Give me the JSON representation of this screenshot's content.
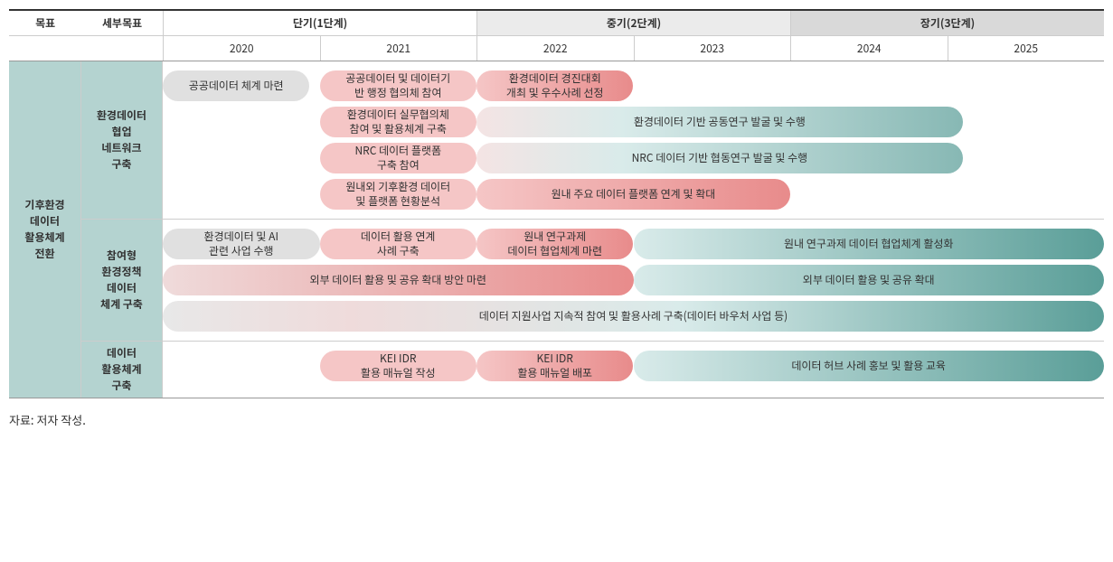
{
  "header": {
    "goal_label": "목표",
    "sub_label": "세부목표",
    "phases": [
      {
        "label": "단기(1단계)",
        "years": [
          "2020",
          "2021"
        ],
        "bg": "#ffffff"
      },
      {
        "label": "중기(2단계)",
        "years": [
          "2022",
          "2023"
        ],
        "bg": "#ebebeb"
      },
      {
        "label": "장기(3단계)",
        "years": [
          "2024",
          "2025"
        ],
        "bg": "#d9d9d9"
      }
    ]
  },
  "goal": {
    "label": "기후환경\n데이터\n활용체계\n전환",
    "bg": "#b4d3d0",
    "subs": [
      {
        "label": "환경데이터\n협업\n네트워크\n구축",
        "bg": "#b4d3d0",
        "tracks": [
          [
            {
              "label": "공공데이터 체계 마련",
              "start": 0,
              "end": 15.6,
              "bg": "#e0e0e0",
              "grad": null,
              "color": "#333"
            },
            {
              "label": "공공데이터 및 데이터기\n반 행정 협의체 참여",
              "start": 16.67,
              "end": 33.33,
              "bg": "#f5c6c6",
              "grad": null,
              "color": "#333"
            },
            {
              "label": "환경데이터 경진대회\n개최 및 우수사례 선정",
              "start": 33.33,
              "end": 50,
              "bg": "linear-gradient(90deg,#f5c6c6 0%,#e88b8b 100%)",
              "grad": true,
              "color": "#333"
            }
          ],
          [
            {
              "label": "환경데이터 실무협의체\n참여 및 활용체계 구축",
              "start": 16.67,
              "end": 33.33,
              "bg": "#f5c6c6",
              "grad": null,
              "color": "#333"
            },
            {
              "label": "환경데이터 기반 공동연구 발굴 및 수행",
              "start": 33.33,
              "end": 85,
              "bg": "linear-gradient(90deg,#f4e4e4 0%,#d9ebea 30%,#87b8b4 100%)",
              "grad": true,
              "color": "#333"
            }
          ],
          [
            {
              "label": "NRC 데이터 플랫폼\n구축 참여",
              "start": 16.67,
              "end": 33.33,
              "bg": "#f5c6c6",
              "grad": null,
              "color": "#333"
            },
            {
              "label": "NRC 데이터 기반 협동연구 발굴 및 수행",
              "start": 33.33,
              "end": 85,
              "bg": "linear-gradient(90deg,#f4e4e4 0%,#d9ebea 30%,#87b8b4 100%)",
              "grad": true,
              "color": "#333"
            }
          ],
          [
            {
              "label": "원내외 기후환경 데이터\n및 플랫폼 현황분석",
              "start": 16.67,
              "end": 33.33,
              "bg": "#f5c6c6",
              "grad": null,
              "color": "#333"
            },
            {
              "label": "원내 주요 데이터 플랫폼 연계 및 확대",
              "start": 33.33,
              "end": 66.67,
              "bg": "linear-gradient(90deg,#f5c6c6 0%,#e88b8b 100%)",
              "grad": true,
              "color": "#333"
            }
          ]
        ]
      },
      {
        "label": "참여형\n환경정책\n데이터\n체계 구축",
        "bg": "#b4d3d0",
        "tracks": [
          [
            {
              "label": "환경데이터 및 AI\n관련 사업 수행",
              "start": 0,
              "end": 16.67,
              "bg": "#e0e0e0",
              "grad": null,
              "color": "#333"
            },
            {
              "label": "데이터 활용 연계\n사례 구축",
              "start": 16.67,
              "end": 33.33,
              "bg": "#f5c6c6",
              "grad": null,
              "color": "#333"
            },
            {
              "label": "원내 연구과제\n데이터 협업체계 마련",
              "start": 33.33,
              "end": 50,
              "bg": "linear-gradient(90deg,#f5c6c6 0%,#e88b8b 100%)",
              "grad": true,
              "color": "#333"
            },
            {
              "label": "원내 연구과제 데이터 협업체계 활성화",
              "start": 50,
              "end": 100,
              "bg": "linear-gradient(90deg,#d9ebea 0%,#5a9e98 100%)",
              "grad": true,
              "color": "#333"
            }
          ],
          [
            {
              "label": "외부 데이터 활용 및 공유 확대 방안 마련",
              "start": 0,
              "end": 50,
              "bg": "linear-gradient(90deg,#efdbdb 0%,#e88b8b 100%)",
              "grad": true,
              "color": "#333"
            },
            {
              "label": "외부 데이터 활용 및 공유 확대",
              "start": 50,
              "end": 100,
              "bg": "linear-gradient(90deg,#d9ebea 0%,#5a9e98 100%)",
              "grad": true,
              "color": "#333"
            }
          ],
          [
            {
              "label": "데이터 지원사업 지속적 참여 및 활용사례 구축(데이터 바우처 사업 등)",
              "start": 0,
              "end": 100,
              "bg": "linear-gradient(90deg,#e8e8e8 0%,#efdbdb 20%,#d9ebea 55%,#5a9e98 100%)",
              "grad": true,
              "color": "#333"
            }
          ]
        ]
      },
      {
        "label": "데이터\n활용체계\n구축",
        "bg": "#b4d3d0",
        "tracks": [
          [
            {
              "label": "KEI IDR\n활용 매뉴얼 작성",
              "start": 16.67,
              "end": 33.33,
              "bg": "#f5c6c6",
              "grad": null,
              "color": "#333"
            },
            {
              "label": "KEI IDR\n활용 매뉴얼 배포",
              "start": 33.33,
              "end": 50,
              "bg": "linear-gradient(90deg,#f5c6c6 0%,#e88b8b 100%)",
              "grad": true,
              "color": "#333"
            },
            {
              "label": "데이터 허브 사례 홍보 및 활용 교육",
              "start": 50,
              "end": 100,
              "bg": "linear-gradient(90deg,#d9ebea 0%,#5a9e98 100%)",
              "grad": true,
              "color": "#333"
            }
          ]
        ]
      }
    ]
  },
  "footer": "자료: 저자 작성.",
  "style": {
    "background_color": "#ffffff",
    "border_color_strong": "#333333",
    "border_color_light": "#cccccc",
    "row_border": "#dddddd",
    "font_family": "Malgun Gothic",
    "font_size_base": 12,
    "goal_col_width": 80,
    "sub_col_width": 90,
    "bar_radius": 17,
    "track_height": 38
  }
}
